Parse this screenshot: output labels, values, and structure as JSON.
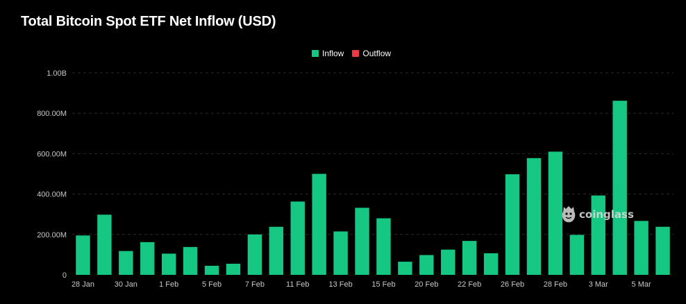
{
  "title": "Total Bitcoin Spot ETF Net Inflow (USD)",
  "legend": {
    "inflow_label": "Inflow",
    "outflow_label": "Outflow"
  },
  "watermark": {
    "text": "coinglass"
  },
  "colors": {
    "inflow": "#16c784",
    "outflow": "#ea3943",
    "background": "#000000",
    "grid": "#2a2a2a",
    "tick_text": "#c8c8c8"
  },
  "chart_data": {
    "type": "bar",
    "title": "Total Bitcoin Spot ETF Net Inflow (USD)",
    "xlabel": "",
    "ylabel": "",
    "ylim": [
      0,
      1000000000
    ],
    "grid": true,
    "legend_position": "top-center",
    "y_ticks": [
      {
        "value": 0,
        "label": "0"
      },
      {
        "value": 200000000,
        "label": "200.00M"
      },
      {
        "value": 400000000,
        "label": "400.00M"
      },
      {
        "value": 600000000,
        "label": "600.00M"
      },
      {
        "value": 800000000,
        "label": "800.00M"
      },
      {
        "value": 1000000000,
        "label": "1.00B"
      }
    ],
    "x_tick_labels": [
      "28 Jan",
      "30 Jan",
      "1 Feb",
      "5 Feb",
      "7 Feb",
      "11 Feb",
      "13 Feb",
      "15 Feb",
      "20 Feb",
      "22 Feb",
      "26 Feb",
      "28 Feb",
      "3 Mar",
      "5 Mar"
    ],
    "x_tick_indices": [
      0,
      2,
      4,
      6,
      8,
      10,
      12,
      14,
      16,
      18,
      20,
      22,
      24,
      26
    ],
    "series": [
      {
        "name": "Inflow",
        "values": [
          195000000,
          298000000,
          118000000,
          162000000,
          105000000,
          138000000,
          45000000,
          55000000,
          200000000,
          238000000,
          363000000,
          500000000,
          215000000,
          332000000,
          280000000,
          65000000,
          98000000,
          125000000,
          168000000,
          107000000,
          498000000,
          578000000,
          610000000,
          198000000,
          393000000,
          862000000,
          267000000,
          238000000
        ]
      },
      {
        "name": "Outflow",
        "values": []
      }
    ]
  }
}
